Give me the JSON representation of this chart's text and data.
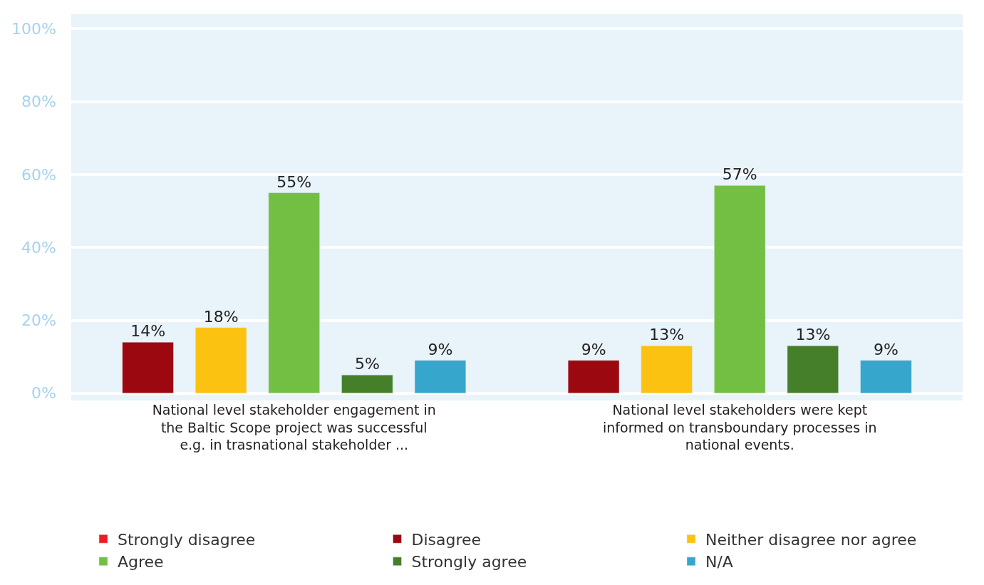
{
  "chart_data": {
    "type": "bar",
    "categories": [
      "National level stakeholder engagement in the Baltic Scope project was successful e.g. in trasnational stakeholder ...",
      "National level stakeholders were kept informed on transboundary processes in national events."
    ],
    "series": [
      {
        "name": "Strongly disagree",
        "color": "#ed1c24",
        "values": [
          null,
          null
        ],
        "value_labels": [
          null,
          null
        ]
      },
      {
        "name": "Disagree",
        "color": "#9b080f",
        "values": [
          14,
          9
        ],
        "value_labels": [
          "14%",
          "9%"
        ]
      },
      {
        "name": "Neither disagree nor agree",
        "color": "#fcc212",
        "values": [
          18,
          13
        ],
        "value_labels": [
          "18%",
          "13%"
        ]
      },
      {
        "name": "Agree",
        "color": "#72bf44",
        "values": [
          55,
          57
        ],
        "value_labels": [
          "55%",
          "57%"
        ]
      },
      {
        "name": "Strongly agree",
        "color": "#457f2a",
        "values": [
          5,
          13
        ],
        "value_labels": [
          "5%",
          "13%"
        ]
      },
      {
        "name": "N/A",
        "color": "#36a6cc",
        "values": [
          9,
          9
        ],
        "value_labels": [
          "9%",
          "9%"
        ]
      }
    ],
    "ylim": [
      -2,
      104
    ],
    "yticks": [
      {
        "value": 0,
        "label": "0%"
      },
      {
        "value": 20,
        "label": "20%"
      },
      {
        "value": 40,
        "label": "40%"
      },
      {
        "value": 60,
        "label": "60%"
      },
      {
        "value": 80,
        "label": "80%"
      },
      {
        "value": 100,
        "label": "100%"
      }
    ],
    "grid": "y",
    "legend": "bottom"
  }
}
